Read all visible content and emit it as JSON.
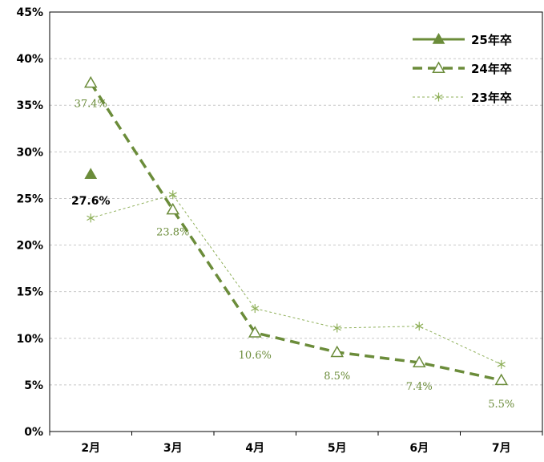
{
  "chart_data": {
    "type": "line",
    "categories": [
      "2月",
      "3月",
      "4月",
      "5月",
      "6月",
      "7月"
    ],
    "ylim": [
      0,
      45
    ],
    "y_ticks": [
      "0%",
      "5%",
      "10%",
      "15%",
      "20%",
      "25%",
      "30%",
      "35%",
      "40%",
      "45%"
    ],
    "grid": "horizontal dashed",
    "legend_position": "top-right",
    "series": [
      {
        "name": "25年卒",
        "values": [
          27.6,
          null,
          null,
          null,
          null,
          null
        ],
        "labels": [
          "27.6%",
          "",
          "",
          "",
          "",
          ""
        ],
        "style": "solid",
        "marker": "filled-triangle",
        "color": "#6b8c3a"
      },
      {
        "name": "24年卒",
        "values": [
          37.4,
          23.8,
          10.6,
          8.5,
          7.4,
          5.5
        ],
        "labels": [
          "37.4%",
          "23.8%",
          "10.6%",
          "8.5%",
          "7.4%",
          "5.5%"
        ],
        "style": "dashed",
        "marker": "open-triangle",
        "color": "#6b8c3a"
      },
      {
        "name": "23年卒",
        "values": [
          22.9,
          25.4,
          13.2,
          11.1,
          11.3,
          7.2
        ],
        "style": "dotted",
        "marker": "asterisk",
        "color": "#8fb05a"
      }
    ]
  }
}
